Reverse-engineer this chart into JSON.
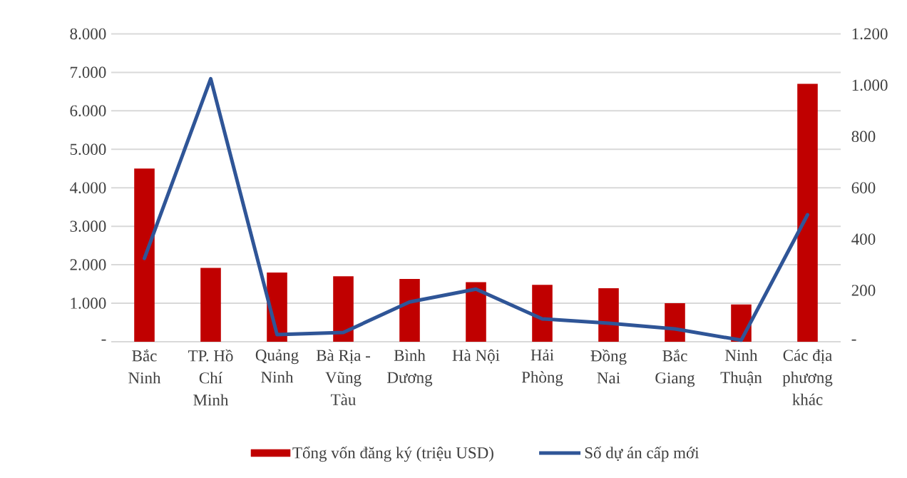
{
  "chart_data": {
    "type": "bar",
    "categories": [
      "Bắc Ninh",
      "TP. Hồ Chí Minh",
      "Quảng Ninh",
      "Bà Rịa - Vũng Tàu",
      "Bình Dương",
      "Hà Nội",
      "Hải Phòng",
      "Đồng Nai",
      "Bắc Giang",
      "Ninh Thuận",
      "Các địa phương khác"
    ],
    "series": [
      {
        "name": "Tổng vốn đăng ký (triệu USD)",
        "color": "#c00000",
        "values": [
          4500,
          1920,
          1800,
          1700,
          1630,
          1550,
          1480,
          1390,
          1000,
          970,
          6700
        ]
      },
      {
        "name": "Số dự án cấp mới",
        "type": "line",
        "axis": "y2",
        "color": "#2f5597",
        "values": [
          325,
          1025,
          28,
          36,
          155,
          205,
          89,
          72,
          50,
          6,
          495
        ]
      }
    ],
    "ylim": [
      0,
      8000
    ],
    "yticks": [
      {
        "value": 0,
        "label": "-"
      },
      {
        "value": 1000,
        "label": "1.000"
      },
      {
        "value": 2000,
        "label": "2.000"
      },
      {
        "value": 3000,
        "label": "3.000"
      },
      {
        "value": 4000,
        "label": "4.000"
      },
      {
        "value": 5000,
        "label": "5.000"
      },
      {
        "value": 6000,
        "label": "6.000"
      },
      {
        "value": 7000,
        "label": "7.000"
      },
      {
        "value": 8000,
        "label": "8.000"
      }
    ],
    "y2lim": [
      0,
      1200
    ],
    "y2ticks": [
      {
        "value": 0,
        "label": "-"
      },
      200,
      400,
      600,
      800,
      {
        "value": 1000,
        "label": "1.000"
      },
      {
        "value": 1200,
        "label": "1.200"
      }
    ],
    "grid": "y",
    "legend": "bottom"
  }
}
